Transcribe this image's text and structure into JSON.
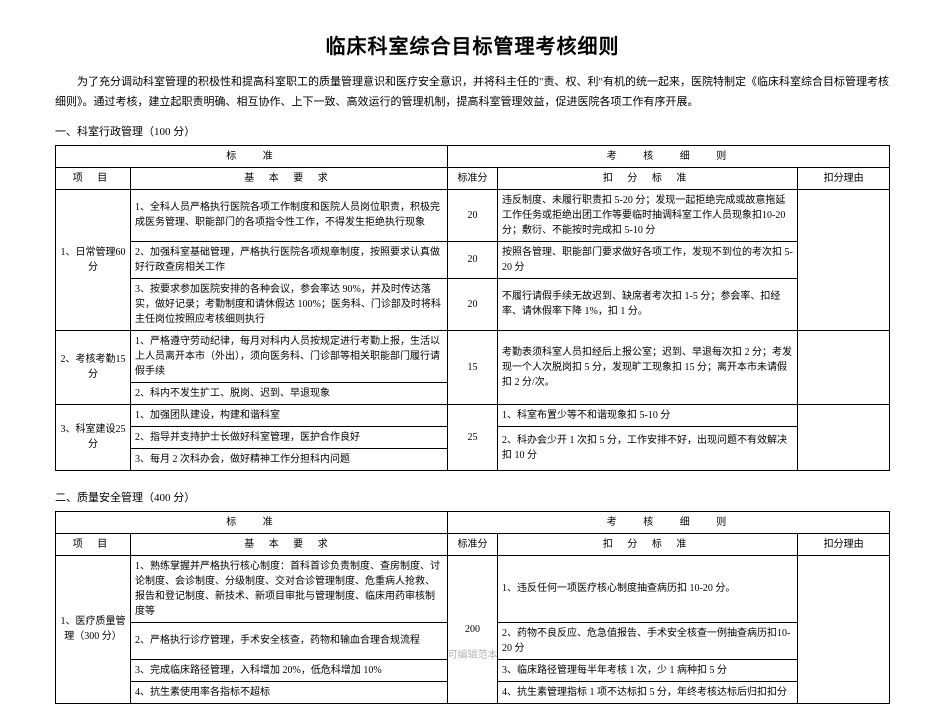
{
  "title": "临床科室综合目标管理考核细则",
  "intro": "为了充分调动科室管理的积极性和提高科室职工的质量管理意识和医疗安全意识，并将科主任的\"责、权、利\"有机的统一起来，医院特制定《临床科室综合目标管理考核细则》。通过考核，建立起职责明确、相互协作、上下一致、高效运行的管理机制，提高科室管理效益，促进医院各项工作有序开展。",
  "section1": {
    "heading": "一、科室行政管理（100 分）",
    "headers": {
      "standard": "标    准",
      "assessment": "考  核  细  则",
      "project": "项  目",
      "basic": "基 本 要 求",
      "score": "标准分",
      "deduct": "扣 分 标 准",
      "reason": "扣分理由"
    },
    "rows": [
      {
        "project": "1、日常管理60 分",
        "basics": [
          "1、全科人员严格执行医院各项工作制度和医院人员岗位职责，积极完成医务管理、职能部门的各项指令性工作，不得发生拒绝执行现象",
          "2、加强科室基础管理，严格执行医院各项规章制度，按照要求认真做好行政查房相关工作",
          "3、按要求参加医院安排的各种会议，参会率达 90%，并及时传达落实，做好记录；考勤制度和请休假达 100%；医务科、门诊部及时将科主任岗位按照应考核细则执行"
        ],
        "scores": [
          "20",
          "20",
          "20"
        ],
        "deducts": [
          "违反制度、未履行职责扣 5-20 分；发现一起拒绝完成或故意拖延工作任务或拒绝出团工作等要临时抽调科室工作人员现象扣10-20 分；敷衍、不能按时完成扣 5-10 分",
          "按照各管理、职能部门要求做好各项工作，发现不到位的考次扣 5-20 分",
          "不履行请假手续无故迟到、缺席者考次扣 1-5 分；参会率、扣经率、请休假率下降 1%，扣 1 分。"
        ]
      },
      {
        "project": "2、考核考勤15 分",
        "basics": [
          "1、严格遵守劳动纪律，每月对科内人员按规定进行考勤上报，生活以上人员离开本市（外出），须向医务科、门诊部等相关职能部门履行请假手续",
          "2、科内不发生扩工、脱岗、迟到、早退现象"
        ],
        "scores": [
          "15"
        ],
        "deducts": [
          "考勤表须科室人员扣经后上报公室；迟到、早退每次扣 2 分；考发现一个人次脱岗扣 5 分，发现旷工现象扣 15 分；离开本市未请假扣 2 分/次。"
        ]
      },
      {
        "project": "3、科室建设25 分",
        "basics": [
          "1、加强团队建设，构建和谐科室",
          "2、指导并支持护士长做好科室管理，医护合作良好",
          "3、每月 2 次科办会，做好精神工作分担科内问题"
        ],
        "scores": [
          "25"
        ],
        "deducts": [
          "1、科室布置少等不和谐现象扣 5-10 分",
          "2、科办会少开 1 次扣 5 分，工作安排不好，出现问题不有效解决扣 10 分"
        ]
      }
    ]
  },
  "section2": {
    "heading": "二、质量安全管理（400 分）",
    "headers": {
      "standard": "标    准",
      "assessment": "考  核  细  则",
      "project": "项  目",
      "basic": "基 本 要 求",
      "score": "标准分",
      "deduct": "扣 分 标 准",
      "reason": "扣分理由"
    },
    "rows": [
      {
        "project": "1、医疗质量管理（300 分）",
        "basics": [
          "1、熟练掌握并严格执行核心制度：首科首诊负责制度、查房制度、讨论制度、会诊制度、分级制度、交对合诊管理制度、危重病人抢救、报告和登记制度、新技术、新项目审批与管理制度、临床用药审核制度等",
          "2、严格执行诊疗管理，手术安全核查，药物和输血合理合规流程",
          "3、完成临床路径管理，入科增加 20%，低危科增加 10%",
          "4、抗生素使用率各指标不超标"
        ],
        "scores": [
          "200"
        ],
        "deducts": [
          "1、违反任何一项医疗核心制度抽查病历扣 10-20 分。",
          "2、药物不良反应、危急值报告、手术安全核查一例抽查病历扣10-20 分",
          "3、临床路径管理每半年考核 1 次，少 1 病种扣 5 分",
          "4、抗生素管理指标 1 项不达标扣 5 分，年终考核达标后归扣扣分"
        ]
      }
    ]
  },
  "footer": "可编辑范本"
}
